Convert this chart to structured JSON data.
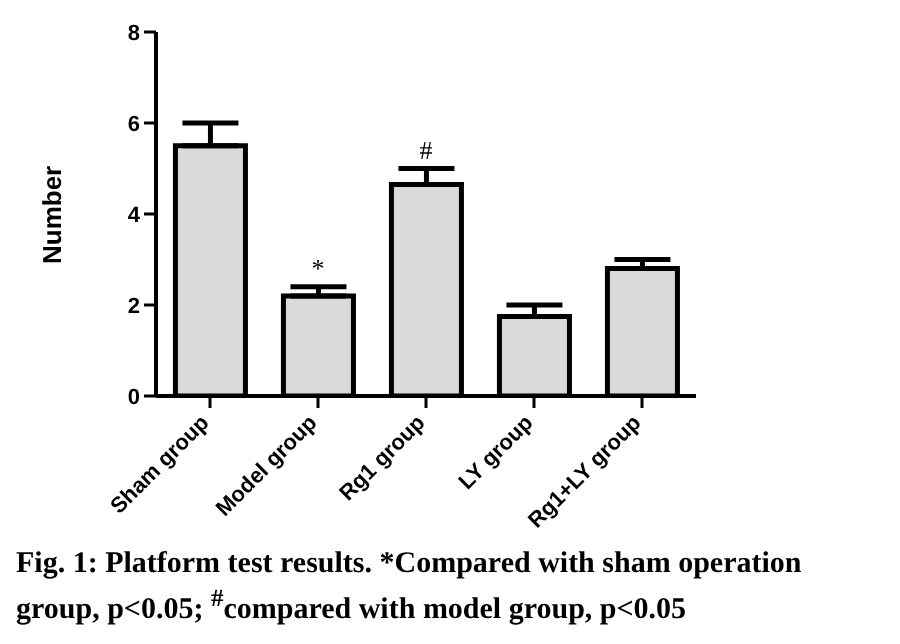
{
  "chart_data": {
    "type": "bar",
    "ylabel": "Number",
    "categories": [
      "Sham group",
      "Model group",
      "Rg1 group",
      "LY group",
      "Rg1+LY group"
    ],
    "values": [
      5.5,
      2.2,
      4.65,
      1.75,
      2.8
    ],
    "errors": [
      0.5,
      0.2,
      0.35,
      0.25,
      0.2
    ],
    "color": "#d9d9d9",
    "ylim": [
      0,
      8
    ],
    "yticks": [
      0,
      2,
      4,
      6,
      8
    ],
    "grid": false,
    "annotations": [
      {
        "text": "*",
        "x": "Model group",
        "y": 2.4
      },
      {
        "text": "#",
        "x": "Rg1 group",
        "y": 5.0
      },
      "Fig. 1: Platform test results. *Compared with sham operation group, p<0.05; $^{#}$compared with model group, p<0.05"
    ]
  }
}
